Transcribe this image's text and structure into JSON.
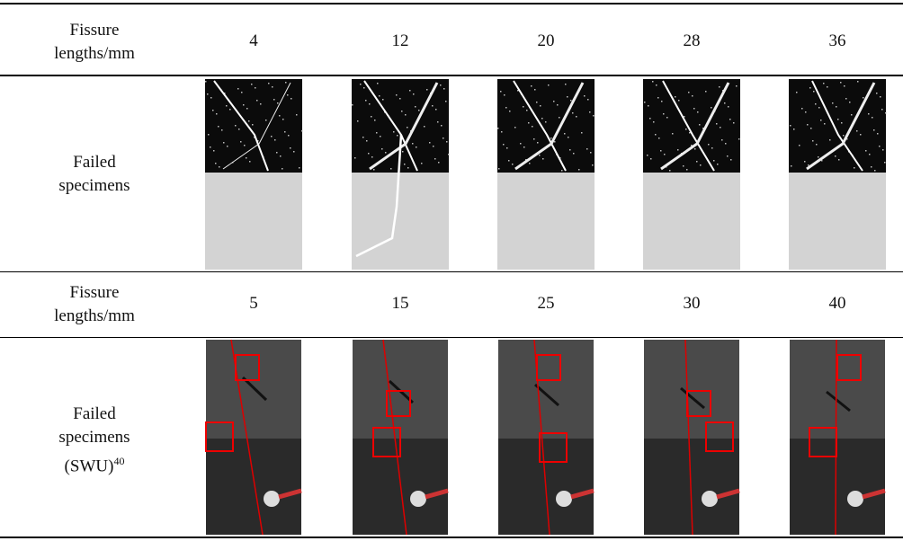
{
  "table": {
    "rows": [
      {
        "label": [
          "Fissure",
          "lengths/mm"
        ],
        "cells": [
          4,
          12,
          20,
          28,
          36
        ]
      },
      {
        "label": [
          "Failed",
          "specimens"
        ]
      },
      {
        "label": [
          "Fissure",
          "lengths/mm"
        ],
        "cells": [
          5,
          15,
          25,
          30,
          40
        ]
      },
      {
        "label": [
          "Failed",
          "specimens",
          "(SWU)"
        ],
        "ref": "40"
      }
    ]
  }
}
